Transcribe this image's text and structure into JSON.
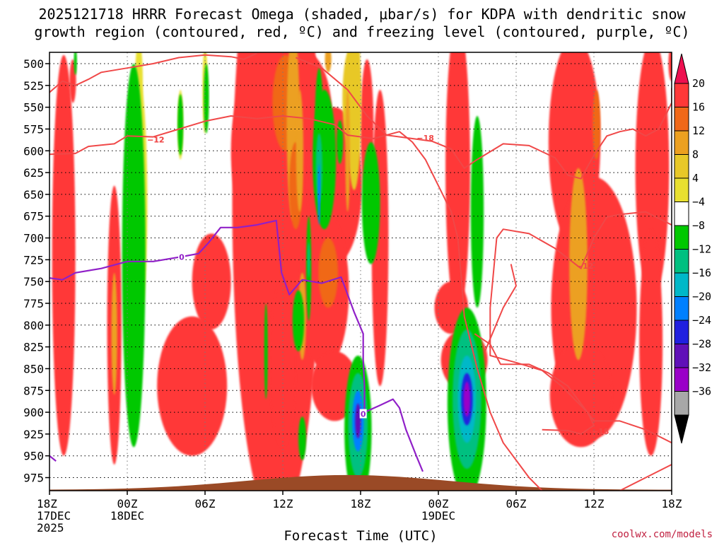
{
  "chart_data": {
    "type": "heatmap",
    "title_line1": "2025121718 HRRR Forecast Omega (shaded, μbar/s) for KDPA with dendritic snow",
    "title_line2": "growth region (contoured, red, ºC) and freezing level (contoured, purple, ºC)",
    "xlabel": "Forecast Time (UTC)",
    "credit": "coolwx.com/models",
    "x_ticks": [
      {
        "hour": 0,
        "lines": [
          "18Z",
          "17DEC",
          "2025"
        ]
      },
      {
        "hour": 6,
        "lines": [
          "00Z",
          "18DEC"
        ]
      },
      {
        "hour": 12,
        "lines": [
          "06Z"
        ]
      },
      {
        "hour": 18,
        "lines": [
          "12Z"
        ]
      },
      {
        "hour": 24,
        "lines": [
          "18Z"
        ]
      },
      {
        "hour": 30,
        "lines": [
          "00Z",
          "19DEC"
        ]
      },
      {
        "hour": 36,
        "lines": [
          "06Z"
        ]
      },
      {
        "hour": 42,
        "lines": [
          "12Z"
        ]
      },
      {
        "hour": 48,
        "lines": [
          "18Z"
        ]
      }
    ],
    "x_range": [
      0,
      48
    ],
    "y_range": [
      487,
      990
    ],
    "y_ticks": [
      500,
      525,
      550,
      575,
      600,
      625,
      650,
      675,
      700,
      725,
      750,
      775,
      800,
      825,
      850,
      875,
      900,
      925,
      950,
      975
    ],
    "colorbar": {
      "labels": [
        "20",
        "16",
        "12",
        "8",
        "4",
        "−4",
        "−8",
        "−12",
        "−16",
        "−20",
        "−24",
        "−28",
        "−32",
        "−36"
      ],
      "colors": [
        "#ee1050",
        "#ff3838",
        "#f06818",
        "#eca020",
        "#e8c828",
        "#e8e030",
        "#ffffff",
        "#00c800",
        "#00c080",
        "#00b8c8",
        "#0080ff",
        "#2020e0",
        "#6010b8",
        "#9a00c8",
        "#a8a8a8",
        "#000000"
      ]
    },
    "terrain_color": "#9a4a26",
    "blobs": [
      {
        "t": 1.8,
        "p": 520,
        "dt": 0.25,
        "dp": 25,
        "c": 1
      },
      {
        "t": 1.1,
        "p": 720,
        "dt": 0.9,
        "dp": 230,
        "c": 1
      },
      {
        "t": 5.0,
        "p": 800,
        "dt": 0.55,
        "dp": 160,
        "c": 1
      },
      {
        "t": 5.0,
        "p": 810,
        "dt": 0.22,
        "dp": 70,
        "c": 3
      },
      {
        "t": 6.8,
        "p": 660,
        "dt": 0.75,
        "dp": 150,
        "c": 5
      },
      {
        "t": 6.9,
        "p": 520,
        "dt": 0.3,
        "dp": 45,
        "c": 5
      },
      {
        "t": 10.1,
        "p": 570,
        "dt": 0.2,
        "dp": 40,
        "c": 5
      },
      {
        "t": 12.0,
        "p": 530,
        "dt": 0.2,
        "dp": 50,
        "c": 5
      },
      {
        "t": 12.5,
        "p": 750,
        "dt": 1.5,
        "dp": 55,
        "c": 1
      },
      {
        "t": 11.0,
        "p": 870,
        "dt": 2.7,
        "dp": 80,
        "c": 1
      },
      {
        "t": 15.8,
        "p": 600,
        "dt": 1.8,
        "dp": 90,
        "c": 1
      },
      {
        "t": 18.5,
        "p": 590,
        "dt": 1.2,
        "dp": 170,
        "c": 2
      },
      {
        "t": 17.5,
        "p": 660,
        "dt": 3.4,
        "dp": 370,
        "c": 1
      },
      {
        "t": 19.6,
        "p": 560,
        "dt": 2.2,
        "dp": 75,
        "c": 1
      },
      {
        "t": 22.0,
        "p": 640,
        "dt": 2.1,
        "dp": 90,
        "c": 1
      },
      {
        "t": 21.2,
        "p": 760,
        "dt": 1.9,
        "dp": 90,
        "c": 1
      },
      {
        "t": 22.0,
        "p": 870,
        "dt": 1.8,
        "dp": 40,
        "c": 1
      },
      {
        "t": 18.0,
        "p": 845,
        "dt": 1.0,
        "dp": 95,
        "c": 1
      },
      {
        "t": 24.5,
        "p": 575,
        "dt": 0.5,
        "dp": 80,
        "c": 1
      },
      {
        "t": 18.2,
        "p": 545,
        "dt": 1.0,
        "dp": 55,
        "c": 2
      },
      {
        "t": 18.8,
        "p": 570,
        "dt": 0.5,
        "dp": 110,
        "c": 3
      },
      {
        "t": 19.0,
        "p": 640,
        "dt": 0.5,
        "dp": 50,
        "c": 2
      },
      {
        "t": 19.5,
        "p": 790,
        "dt": 0.3,
        "dp": 50,
        "c": 3
      },
      {
        "t": 21.5,
        "p": 740,
        "dt": 0.75,
        "dp": 40,
        "c": 2
      },
      {
        "t": 23.3,
        "p": 540,
        "dt": 0.7,
        "dp": 60,
        "c": 4
      },
      {
        "t": 25.5,
        "p": 700,
        "dt": 0.65,
        "dp": 170,
        "c": 1
      },
      {
        "t": 31.5,
        "p": 620,
        "dt": 0.95,
        "dp": 170,
        "c": 1
      },
      {
        "t": 31.0,
        "p": 780,
        "dt": 1.3,
        "dp": 30,
        "c": 1
      },
      {
        "t": 32.0,
        "p": 840,
        "dt": 1.8,
        "dp": 35,
        "c": 1
      },
      {
        "t": 40.5,
        "p": 590,
        "dt": 2.0,
        "dp": 120,
        "c": 1
      },
      {
        "t": 42.0,
        "p": 780,
        "dt": 3.3,
        "dp": 150,
        "c": 1
      },
      {
        "t": 41.0,
        "p": 880,
        "dt": 2.4,
        "dp": 60,
        "c": 1
      },
      {
        "t": 46.5,
        "p": 620,
        "dt": 1.3,
        "dp": 150,
        "c": 1
      },
      {
        "t": 46.4,
        "p": 820,
        "dt": 0.9,
        "dp": 130,
        "c": 1
      },
      {
        "t": 48.0,
        "p": 500,
        "dt": 0.25,
        "dp": 20,
        "c": 1
      },
      {
        "t": 40.8,
        "p": 730,
        "dt": 0.7,
        "dp": 110,
        "c": 3
      },
      {
        "t": 42.2,
        "p": 570,
        "dt": 0.3,
        "dp": 40,
        "c": 2
      },
      {
        "t": 2.0,
        "p": 498,
        "dt": 0.12,
        "dp": 15,
        "c": 7
      },
      {
        "t": 6.5,
        "p": 720,
        "dt": 0.9,
        "dp": 220,
        "c": 7
      },
      {
        "t": 10.1,
        "p": 570,
        "dt": 0.22,
        "dp": 35,
        "c": 7
      },
      {
        "t": 12.1,
        "p": 540,
        "dt": 0.2,
        "dp": 40,
        "c": 7
      },
      {
        "t": 21.2,
        "p": 610,
        "dt": 0.9,
        "dp": 80,
        "c": 7
      },
      {
        "t": 16.7,
        "p": 830,
        "dt": 0.14,
        "dp": 55,
        "c": 7
      },
      {
        "t": 24.8,
        "p": 660,
        "dt": 0.7,
        "dp": 70,
        "c": 7
      },
      {
        "t": 22.4,
        "p": 590,
        "dt": 0.25,
        "dp": 25,
        "c": 7
      },
      {
        "t": 19.2,
        "p": 795,
        "dt": 0.45,
        "dp": 35,
        "c": 7
      },
      {
        "t": 19.5,
        "p": 930,
        "dt": 0.3,
        "dp": 25,
        "c": 7
      },
      {
        "t": 33.0,
        "p": 670,
        "dt": 0.5,
        "dp": 110,
        "c": 7
      },
      {
        "t": 20.8,
        "p": 585,
        "dt": 0.35,
        "dp": 80,
        "c": 7
      },
      {
        "t": 20.8,
        "p": 620,
        "dt": 0.25,
        "dp": 40,
        "c": 8
      },
      {
        "t": 20.8,
        "p": 650,
        "dt": 0.1,
        "dp": 35,
        "c": 10
      },
      {
        "t": 20.0,
        "p": 735,
        "dt": 0.2,
        "dp": 60,
        "c": 7
      },
      {
        "t": 20.0,
        "p": 725,
        "dt": 0.1,
        "dp": 20,
        "c": 8
      },
      {
        "t": 23.8,
        "p": 920,
        "dt": 1.05,
        "dp": 85,
        "c": 7
      },
      {
        "t": 23.8,
        "p": 915,
        "dt": 0.75,
        "dp": 60,
        "c": 8
      },
      {
        "t": 23.8,
        "p": 910,
        "dt": 0.45,
        "dp": 35,
        "c": 10
      },
      {
        "t": 23.8,
        "p": 910,
        "dt": 0.22,
        "dp": 20,
        "c": 12
      },
      {
        "t": 32.2,
        "p": 890,
        "dt": 1.5,
        "dp": 110,
        "c": 7
      },
      {
        "t": 32.2,
        "p": 885,
        "dt": 1.1,
        "dp": 80,
        "c": 8
      },
      {
        "t": 32.2,
        "p": 885,
        "dt": 0.7,
        "dp": 50,
        "c": 9
      },
      {
        "t": 32.2,
        "p": 885,
        "dt": 0.45,
        "dp": 30,
        "c": 11
      },
      {
        "t": 32.2,
        "p": 885,
        "dt": 0.25,
        "dp": 20,
        "c": 13
      },
      {
        "t": 23.5,
        "p": 545,
        "dt": 0.55,
        "dp": 100,
        "c": 4
      },
      {
        "t": 21.5,
        "p": 495,
        "dt": 0.25,
        "dp": 15,
        "c": 3
      },
      {
        "t": 19.3,
        "p": 600,
        "dt": 0.28,
        "dp": 70,
        "c": 3
      },
      {
        "t": 23.0,
        "p": 600,
        "dt": 0.18,
        "dp": 70,
        "c": 3
      }
    ],
    "dendritic_contours": [
      {
        "label": "−12",
        "label_at": [
          8.2,
          587
        ],
        "points": [
          [
            0,
            533
          ],
          [
            1,
            520
          ],
          [
            2,
            525
          ],
          [
            3,
            518
          ],
          [
            4,
            510
          ],
          [
            6,
            505
          ],
          [
            8,
            500
          ],
          [
            10,
            493
          ],
          [
            12,
            490
          ],
          [
            14,
            492
          ],
          [
            15,
            495
          ],
          [
            16,
            488
          ]
        ]
      },
      {
        "label": "−12",
        "label_at": [
          8.2,
          587
        ],
        "points": [
          [
            0,
            604
          ],
          [
            2,
            603
          ],
          [
            3,
            595
          ],
          [
            5,
            592
          ],
          [
            6,
            583
          ],
          [
            8,
            584
          ],
          [
            10,
            575
          ],
          [
            12,
            566
          ],
          [
            14,
            560
          ],
          [
            16,
            563
          ],
          [
            18,
            560
          ],
          [
            20,
            563
          ],
          [
            22,
            570
          ],
          [
            23,
            582
          ],
          [
            25,
            586
          ],
          [
            27,
            578
          ],
          [
            28,
            590
          ],
          [
            29,
            610
          ],
          [
            30,
            640
          ],
          [
            31,
            670
          ],
          [
            31.5,
            700
          ],
          [
            31.8,
            750
          ],
          [
            32,
            790
          ],
          [
            33,
            850
          ],
          [
            34,
            900
          ],
          [
            35,
            935
          ],
          [
            36,
            955
          ],
          [
            37,
            975
          ],
          [
            38,
            990
          ]
        ]
      },
      {
        "label": "−18",
        "label_at": [
          29,
          585
        ],
        "points": [
          [
            19,
            493
          ],
          [
            21,
            505
          ],
          [
            23,
            530
          ],
          [
            24.5,
            560
          ],
          [
            26,
            582
          ],
          [
            28,
            586
          ],
          [
            29.5,
            589
          ],
          [
            31,
            598
          ],
          [
            32,
            620
          ],
          [
            33,
            610
          ],
          [
            35,
            592
          ],
          [
            37,
            594
          ],
          [
            39,
            608
          ],
          [
            40,
            628
          ],
          [
            41,
            632
          ],
          [
            42,
            605
          ],
          [
            43,
            583
          ],
          [
            44,
            578
          ],
          [
            45,
            575
          ],
          [
            46,
            583
          ],
          [
            47,
            575
          ],
          [
            48,
            545
          ],
          [
            48,
            528
          ]
        ]
      },
      {
        "label": "−12",
        "label_at": [
          41.3,
          732
        ],
        "points": [
          [
            48,
            685
          ],
          [
            46,
            670
          ],
          [
            44,
            673
          ],
          [
            43,
            676
          ],
          [
            42,
            700
          ],
          [
            41,
            735
          ],
          [
            39,
            712
          ],
          [
            37,
            695
          ],
          [
            35,
            690
          ],
          [
            34.5,
            700
          ],
          [
            34,
            780
          ],
          [
            34,
            835
          ],
          [
            36,
            843
          ],
          [
            38,
            852
          ],
          [
            39.5,
            870
          ],
          [
            40.5,
            885
          ],
          [
            41.5,
            900
          ],
          [
            42,
            915
          ],
          [
            41,
            925
          ],
          [
            40,
            921
          ],
          [
            38,
            920
          ]
        ]
      },
      {
        "label": "−18",
        "label_at": [
          42.5,
          922
        ],
        "points": [
          [
            32.8,
            810
          ],
          [
            34,
            822
          ],
          [
            34.8,
            845
          ],
          [
            37,
            845
          ],
          [
            38.5,
            855
          ],
          [
            40,
            870
          ],
          [
            41.5,
            900
          ],
          [
            42,
            910
          ],
          [
            44,
            910
          ],
          [
            46,
            920
          ],
          [
            48,
            935
          ]
        ]
      },
      {
        "label": "",
        "label_at": null,
        "points": [
          [
            44,
            990
          ],
          [
            46,
            975
          ],
          [
            48,
            960
          ]
        ]
      },
      {
        "label": "",
        "label_at": null,
        "points": [
          [
            33.6,
            830
          ],
          [
            35,
            780
          ],
          [
            36,
            755
          ],
          [
            35.6,
            730
          ]
        ]
      }
    ],
    "freezing_level": {
      "label": "0",
      "label_at_1": [
        10.2,
        722
      ],
      "label_at_2": [
        24.2,
        902
      ],
      "points": [
        [
          0,
          746
        ],
        [
          1,
          748
        ],
        [
          2,
          740
        ],
        [
          4,
          735
        ],
        [
          6,
          727
        ],
        [
          8,
          727
        ],
        [
          10,
          722
        ],
        [
          11.5,
          718
        ],
        [
          12.3,
          705
        ],
        [
          13.2,
          688
        ],
        [
          14.5,
          688
        ],
        [
          16,
          685
        ],
        [
          17.5,
          680
        ],
        [
          17.9,
          740
        ],
        [
          18.5,
          765
        ],
        [
          19.5,
          748
        ],
        [
          21,
          752
        ],
        [
          22.5,
          745
        ],
        [
          23.5,
          785
        ],
        [
          24.2,
          810
        ],
        [
          24.2,
          840
        ],
        [
          24.3,
          870
        ],
        [
          24.3,
          900
        ],
        [
          25.5,
          892
        ],
        [
          26.5,
          885
        ],
        [
          27,
          895
        ],
        [
          27.5,
          920
        ],
        [
          28.3,
          950
        ],
        [
          28.8,
          968
        ]
      ]
    },
    "freezing_level_edge": [
      [
        0,
        950
      ],
      [
        0.5,
        956
      ]
    ]
  }
}
